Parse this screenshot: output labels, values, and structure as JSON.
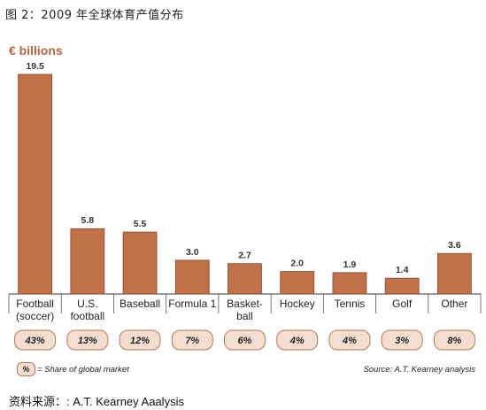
{
  "figure_title": "图 2：2009 年全球体育产值分布",
  "unit_label": "€ billions",
  "chart_data": {
    "type": "bar",
    "categories": [
      "Football\n(soccer)",
      "U.S.\nfootball",
      "Baseball",
      "Formula 1",
      "Basket-\nball",
      "Hockey",
      "Tennis",
      "Golf",
      "Other"
    ],
    "values": [
      19.5,
      5.8,
      5.5,
      3.0,
      2.7,
      2.0,
      1.9,
      1.4,
      3.6
    ],
    "value_labels": [
      "19.5",
      "5.8",
      "5.5",
      "3.0",
      "2.7",
      "2.0",
      "1.9",
      "1.4",
      "3.6"
    ],
    "shares": [
      "43%",
      "13%",
      "12%",
      "7%",
      "6%",
      "4%",
      "4%",
      "3%",
      "8%"
    ],
    "ylim": [
      0,
      19.5
    ],
    "grid": false,
    "colors": {
      "bar": "#c0714a",
      "bar_edge": "#8a4a2c",
      "pill_fill": "#f6ddd0",
      "pill_edge": "#b07a5a",
      "unit": "#b5653a",
      "axis": "#333333"
    }
  },
  "legend": {
    "key": "%",
    "text": "= Share of global market"
  },
  "source": "Source: A.T. Kearney analysis",
  "bottom_source": "资料来源：: A.T. Kearney Aaalysis"
}
